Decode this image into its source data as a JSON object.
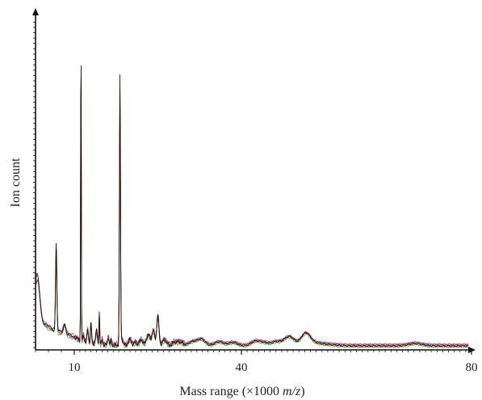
{
  "chart_data": {
    "type": "line",
    "title": "",
    "xlabel": "Mass range (×1000 m/z)",
    "xlabel_parts": {
      "prefix": "Mass range (×1000 ",
      "italic": "m/z",
      "suffix": ")"
    },
    "ylabel": "Ion count",
    "xlim": [
      7,
      80
    ],
    "x_ticks": [
      10,
      40,
      80
    ],
    "y_tick_labels": false,
    "grid": false,
    "legend": "none",
    "series_colors": [
      "#000000",
      "#cc2222",
      "#2a9a3a",
      "#7a3aa0",
      "#c8a020",
      "#3a6ab0"
    ],
    "series_offsets": [
      0,
      0.004,
      -0.003,
      0.006,
      -0.002,
      0.002
    ],
    "series_scale": [
      1.0,
      0.93,
      0.96,
      0.9,
      0.98,
      0.95
    ],
    "peaks": [
      {
        "x": 7.15,
        "height": 0.13,
        "width": 0.18
      },
      {
        "x": 8.6,
        "height": 0.26,
        "width": 0.05
      },
      {
        "x": 9.25,
        "height": 0.03,
        "width": 0.1
      },
      {
        "x": 11.2,
        "height": 1.0,
        "width": 0.05
      },
      {
        "x": 11.65,
        "height": 0.02,
        "width": 0.1
      },
      {
        "x": 12.4,
        "height": 0.04,
        "width": 0.12
      },
      {
        "x": 13.0,
        "height": 0.06,
        "width": 0.1
      },
      {
        "x": 14.0,
        "height": 0.04,
        "width": 0.15
      },
      {
        "x": 14.5,
        "height": 0.1,
        "width": 0.06
      },
      {
        "x": 15.0,
        "height": 0.015,
        "width": 0.1
      },
      {
        "x": 16.1,
        "height": 0.025,
        "width": 0.12
      },
      {
        "x": 16.6,
        "height": 0.015,
        "width": 0.1
      },
      {
        "x": 18.2,
        "height": 0.8,
        "width": 0.09
      },
      {
        "x": 18.5,
        "height": 0.02,
        "width": 0.25
      },
      {
        "x": 20.0,
        "height": 0.018,
        "width": 0.3
      },
      {
        "x": 21.0,
        "height": 0.01,
        "width": 0.25
      },
      {
        "x": 22.0,
        "height": 0.018,
        "width": 0.3
      },
      {
        "x": 23.3,
        "height": 0.032,
        "width": 0.35
      },
      {
        "x": 24.2,
        "height": 0.045,
        "width": 0.25
      },
      {
        "x": 25.0,
        "height": 0.09,
        "width": 0.2
      },
      {
        "x": 26.2,
        "height": 0.018,
        "width": 0.4
      },
      {
        "x": 28.0,
        "height": 0.01,
        "width": 0.4
      },
      {
        "x": 29.0,
        "height": 0.012,
        "width": 0.5
      },
      {
        "x": 31.2,
        "height": 0.012,
        "width": 0.7
      },
      {
        "x": 32.8,
        "height": 0.02,
        "width": 0.7
      },
      {
        "x": 36.0,
        "height": 0.012,
        "width": 0.8
      },
      {
        "x": 38.5,
        "height": 0.01,
        "width": 0.8
      },
      {
        "x": 42.5,
        "height": 0.014,
        "width": 0.8
      },
      {
        "x": 44.0,
        "height": 0.008,
        "width": 0.7
      },
      {
        "x": 46.0,
        "height": 0.012,
        "width": 0.8
      },
      {
        "x": 48.3,
        "height": 0.028,
        "width": 0.9
      },
      {
        "x": 51.2,
        "height": 0.038,
        "width": 0.8
      },
      {
        "x": 53.0,
        "height": 0.006,
        "width": 1.0
      },
      {
        "x": 55.0,
        "height": 0.004,
        "width": 1.5
      },
      {
        "x": 70.2,
        "height": 0.007,
        "width": 1.2
      }
    ],
    "baseline": {
      "base": 0.007,
      "amp": 0.085,
      "decay": 2.6
    }
  }
}
